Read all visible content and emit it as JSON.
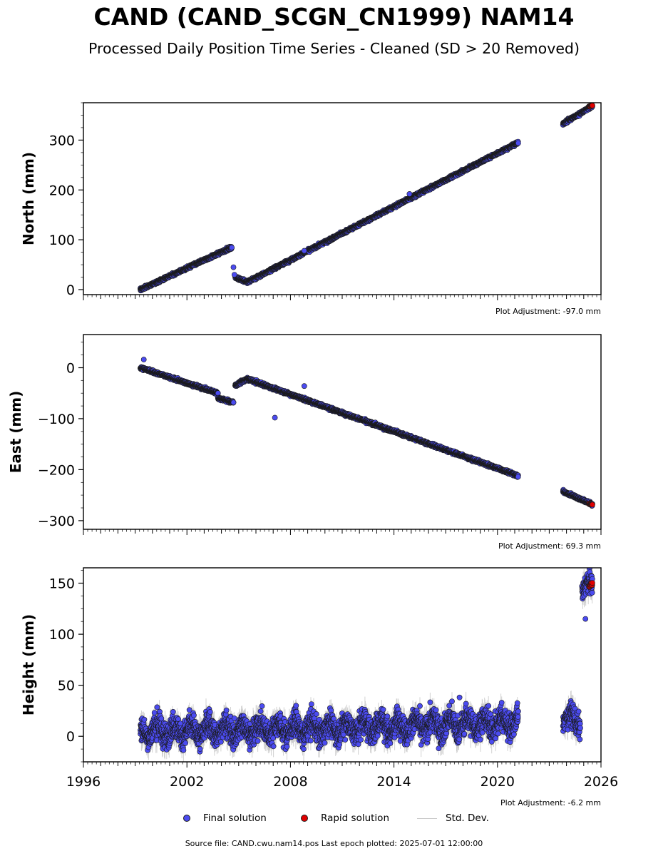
{
  "title": "CAND (CAND_SCGN_CN1999) NAM14",
  "subtitle": "Processed Daily Position Time Series - Cleaned (SD > 20 Removed)",
  "source": "Source file: CAND.cwu.nam14.pos  Last epoch plotted: 2025-07-01 12:00:00",
  "legend": {
    "final": "Final solution",
    "rapid": "Rapid solution",
    "stddev": "Std. Dev."
  },
  "colors": {
    "final": "#4b4bf0",
    "rapid": "#e00000",
    "stddev": "#c8c8c8",
    "edge": "#1a1a1a"
  },
  "chart_data": [
    {
      "type": "scatter",
      "ylabel": "North (mm)",
      "adjustment": "Plot Adjustment: -97.0 mm",
      "xlim": [
        1996,
        2026
      ],
      "ylim": [
        -10,
        375
      ],
      "yticks": [
        0,
        100,
        200,
        300
      ],
      "ytick_labels": [
        "0",
        "100",
        "200",
        "300"
      ],
      "segments": [
        {
          "x": [
            1999.3,
            2004.6
          ],
          "y": [
            0,
            85
          ],
          "noise": 2
        },
        {
          "x": [
            2004.8,
            2005.5
          ],
          "y": [
            25,
            15
          ],
          "noise": 2
        },
        {
          "x": [
            2005.5,
            2021.2
          ],
          "y": [
            15,
            295
          ],
          "noise": 2
        },
        {
          "x": [
            2023.8,
            2025.5
          ],
          "y": [
            333,
            368
          ],
          "noise": 2
        }
      ],
      "step_points": [
        {
          "x": 2004.7,
          "y": 45
        },
        {
          "x": 2004.75,
          "y": 30
        }
      ],
      "outliers": [
        {
          "x": 2014.9,
          "y": 192
        },
        {
          "x": 2008.8,
          "y": 78
        }
      ],
      "rapid": {
        "x": [
          2025.3,
          2025.5
        ],
        "y": [
          367,
          370
        ]
      }
    },
    {
      "type": "scatter",
      "ylabel": "East (mm)",
      "adjustment": "Plot Adjustment: 69.3 mm",
      "xlim": [
        1996,
        2026
      ],
      "ylim": [
        -317,
        65
      ],
      "yticks": [
        0,
        -100,
        -200,
        -300
      ],
      "ytick_labels": [
        "0",
        "−100",
        "−200",
        "−300"
      ],
      "segments": [
        {
          "x": [
            1999.3,
            2003.8
          ],
          "y": [
            0,
            -50
          ],
          "noise": 2
        },
        {
          "x": [
            2003.8,
            2004.7
          ],
          "y": [
            -60,
            -68
          ],
          "noise": 2
        },
        {
          "x": [
            2004.8,
            2005.5
          ],
          "y": [
            -35,
            -22
          ],
          "noise": 2
        },
        {
          "x": [
            2005.5,
            2021.2
          ],
          "y": [
            -22,
            -212
          ],
          "noise": 2
        },
        {
          "x": [
            2023.8,
            2025.5
          ],
          "y": [
            -243,
            -268
          ],
          "noise": 2
        }
      ],
      "step_points": [],
      "outliers": [
        {
          "x": 2007.1,
          "y": -98
        },
        {
          "x": 1999.5,
          "y": 16
        },
        {
          "x": 2008.8,
          "y": -36
        }
      ],
      "rapid": {
        "x": [
          2025.3,
          2025.5
        ],
        "y": [
          -267,
          -269
        ]
      }
    },
    {
      "type": "scatter",
      "ylabel": "Height (mm)",
      "adjustment": "Plot Adjustment: -6.2 mm",
      "xlim": [
        1996,
        2026
      ],
      "ylim": [
        -25,
        165
      ],
      "yticks": [
        0,
        50,
        100,
        150
      ],
      "ytick_labels": [
        "0",
        "50",
        "100",
        "150"
      ],
      "xticks": [
        1996,
        2002,
        2008,
        2014,
        2020,
        2026
      ],
      "xtick_labels": [
        "1996",
        "2002",
        "2008",
        "2014",
        "2020",
        "2026"
      ],
      "segments": [
        {
          "x": [
            1999.3,
            2010.5
          ],
          "y": [
            5,
            8
          ],
          "noise": 9
        },
        {
          "x": [
            2010.5,
            2021.2
          ],
          "y": [
            8,
            14
          ],
          "noise": 9
        },
        {
          "x": [
            2023.8,
            2024.8
          ],
          "y": [
            18,
            15
          ],
          "noise": 8
        },
        {
          "x": [
            2024.9,
            2025.5
          ],
          "y": [
            142,
            148
          ],
          "noise": 7
        }
      ],
      "step_points": [],
      "outliers": [
        {
          "x": 2017.8,
          "y": 38
        },
        {
          "x": 2025.1,
          "y": 115
        },
        {
          "x": 2001.2,
          "y": 24
        }
      ],
      "rapid": {
        "x": [
          2025.3,
          2025.5
        ],
        "y": [
          146,
          150
        ]
      }
    }
  ]
}
